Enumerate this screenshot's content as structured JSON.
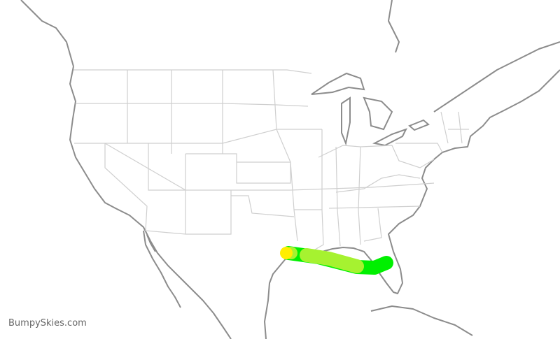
{
  "map": {
    "watermark": "BumpySkies.com",
    "colors": {
      "coastline": "#8c8c8c",
      "state_borders": "#cfcfcf",
      "route_smooth": "#00f000",
      "route_light_chop": "#a6f230",
      "route_start": "#ffee00"
    },
    "route": {
      "segments": [
        {
          "level": "smooth",
          "color": "#00f000"
        },
        {
          "level": "light",
          "color": "#a6f230"
        }
      ],
      "start_marker_color": "#ffee00"
    }
  }
}
